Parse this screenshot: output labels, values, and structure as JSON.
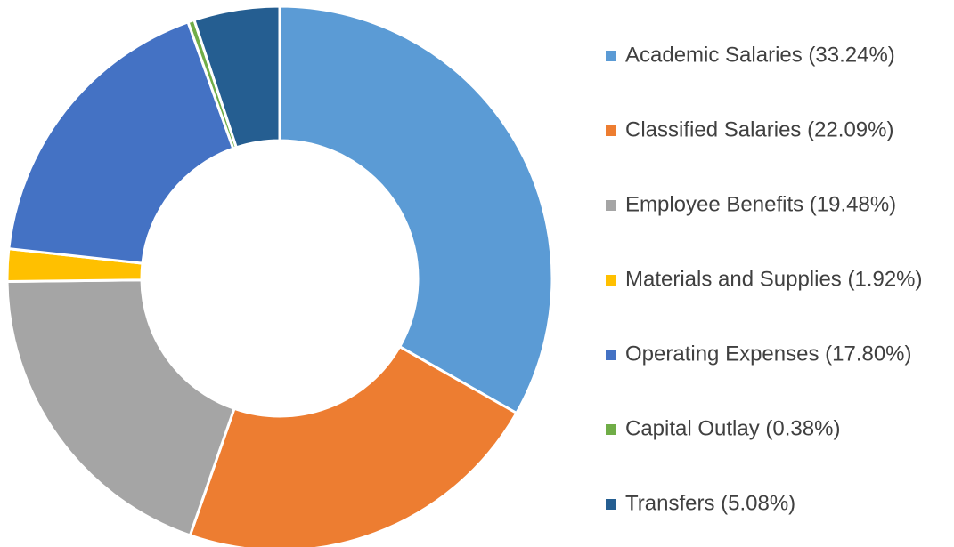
{
  "chart_data": {
    "type": "donut",
    "categories": [
      "Academic Salaries (33.24%)",
      "Classified Salaries (22.09%)",
      "Employee Benefits (19.48%)",
      "Materials and Supplies (1.92%)",
      "Operating Expenses (17.80%)",
      "Capital Outlay (0.38%)",
      "Transfers (5.08%)"
    ],
    "values": [
      33.24,
      22.09,
      19.48,
      1.92,
      17.8,
      0.38,
      5.08
    ],
    "colors": [
      "#5b9bd5",
      "#ed7d31",
      "#a5a5a5",
      "#ffc000",
      "#4472c4",
      "#70ad47",
      "#255e91"
    ],
    "legend": "right"
  }
}
